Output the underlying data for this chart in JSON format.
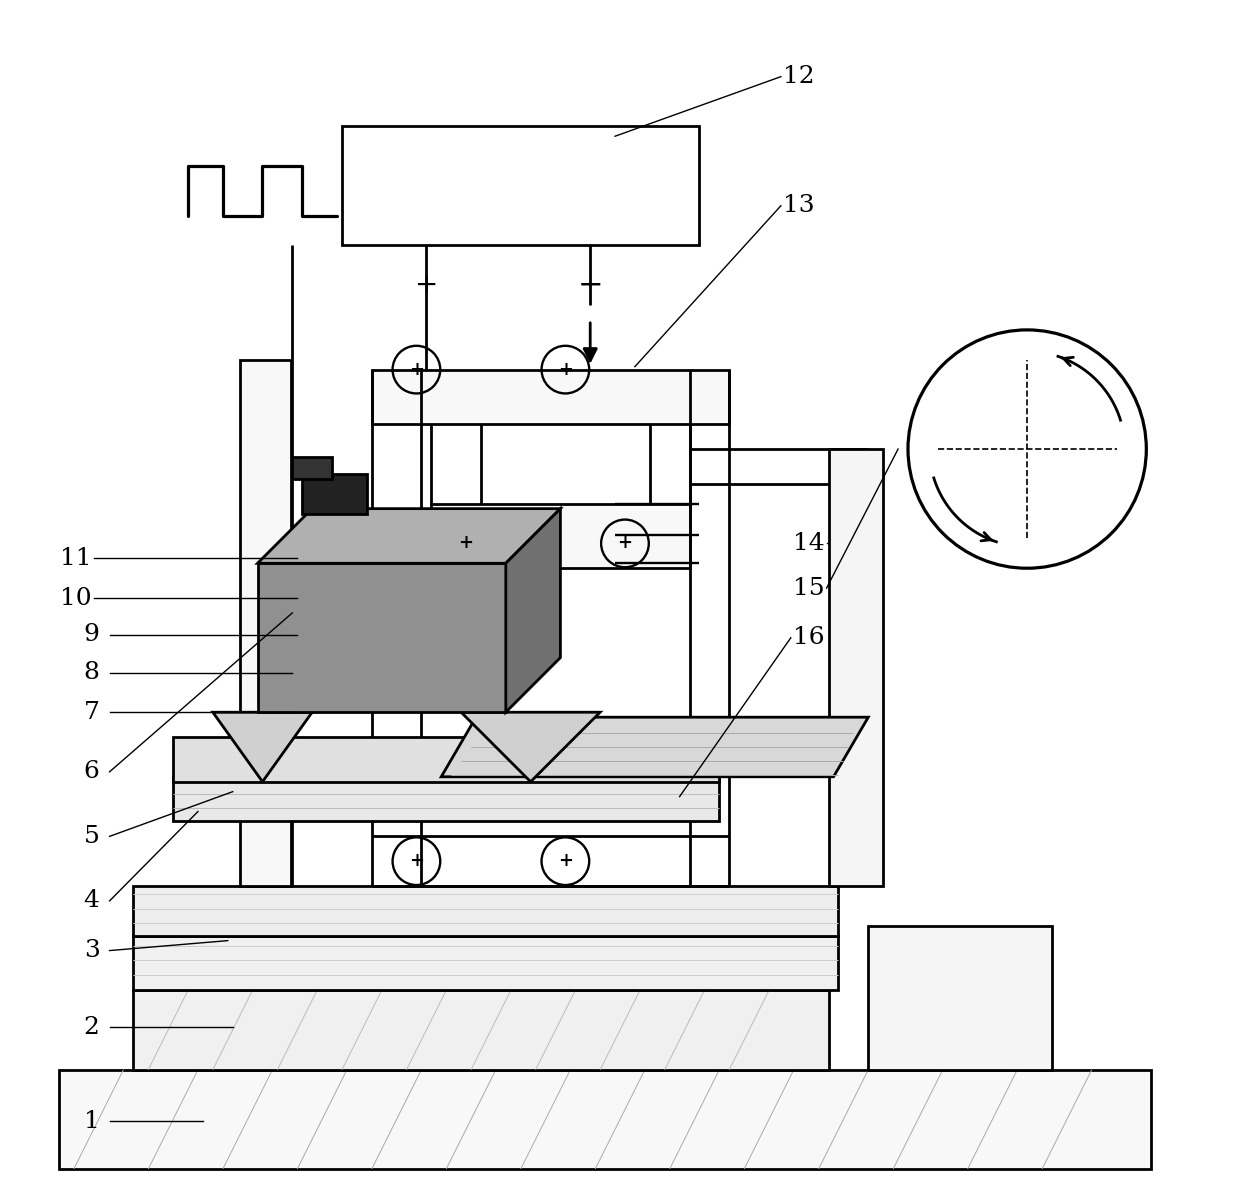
{
  "bg": "#ffffff",
  "lc": "#000000",
  "fw": 12.4,
  "fh": 12.03,
  "lw": 2.0,
  "lt": 1.2,
  "lfs": 18
}
